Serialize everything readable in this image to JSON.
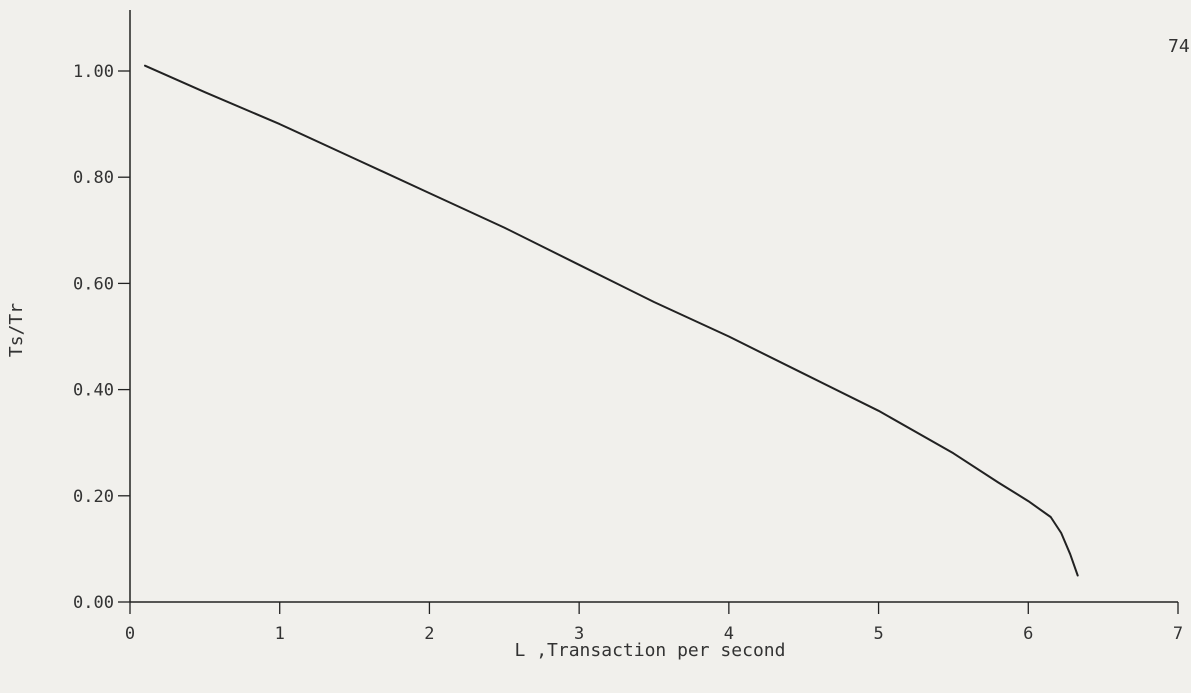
{
  "page": {
    "page_number": "74"
  },
  "chart_data": {
    "type": "line",
    "title": "",
    "xlabel": "L ,Transaction per second",
    "ylabel": "Ts/Tr",
    "xlim": [
      0,
      7
    ],
    "ylim": [
      0,
      1.0
    ],
    "x_ticks": [
      "0",
      "1",
      "2",
      "3",
      "4",
      "5",
      "6",
      "7"
    ],
    "y_ticks": [
      "0.00",
      "0.20",
      "0.40",
      "0.60",
      "0.80",
      "1.00"
    ],
    "grid": false,
    "series": [
      {
        "color": "#222222",
        "x": [
          0.1,
          0.5,
          1.0,
          1.5,
          2.0,
          2.5,
          3.0,
          3.5,
          4.0,
          4.5,
          5.0,
          5.5,
          5.8,
          6.0,
          6.15,
          6.22,
          6.28,
          6.33
        ],
        "y": [
          1.01,
          0.96,
          0.9,
          0.835,
          0.77,
          0.705,
          0.635,
          0.565,
          0.5,
          0.43,
          0.36,
          0.28,
          0.225,
          0.19,
          0.16,
          0.13,
          0.09,
          0.05
        ]
      }
    ]
  }
}
